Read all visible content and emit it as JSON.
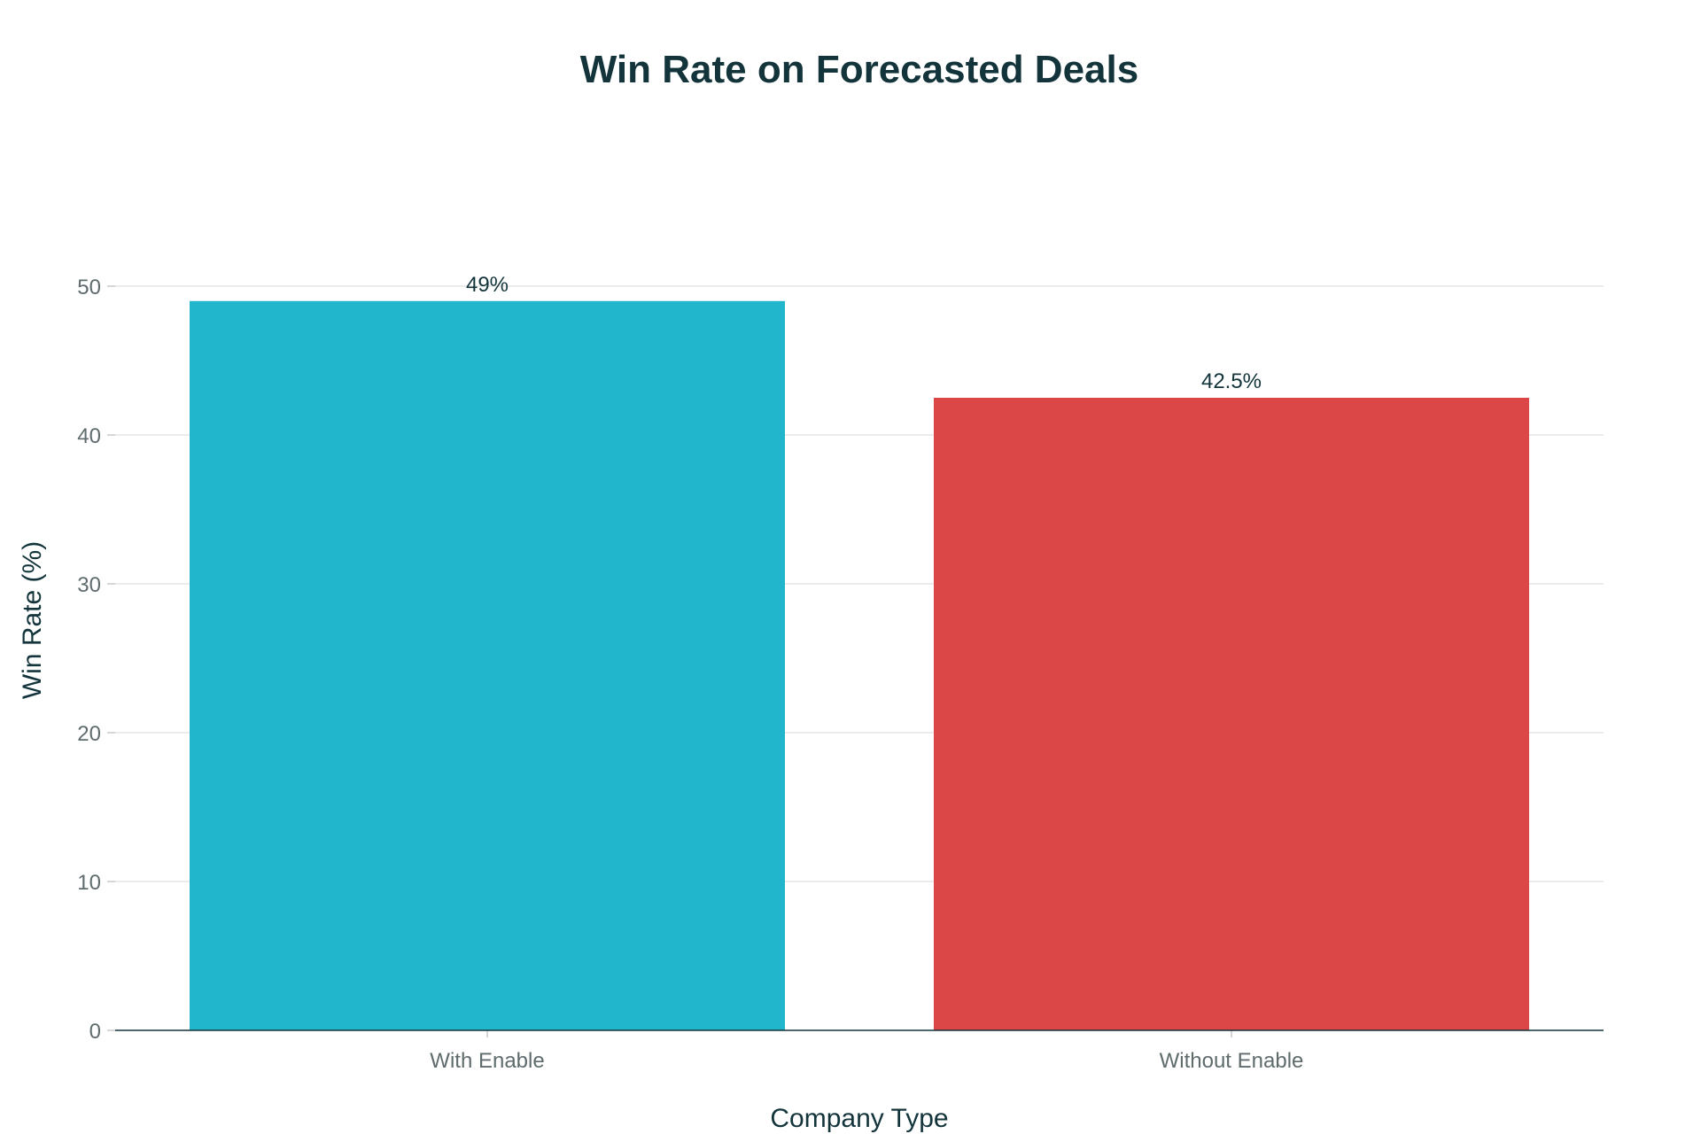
{
  "chart_data": {
    "type": "bar",
    "title": "Win Rate on Forecasted Deals",
    "xlabel": "Company Type",
    "ylabel": "Win Rate (%)",
    "categories": [
      "With Enable",
      "Without Enable"
    ],
    "values": [
      49,
      42.5
    ],
    "data_labels": [
      "49%",
      "42.5%"
    ],
    "bar_colors": [
      "#21b6cc",
      "#db4646"
    ],
    "ylim": [
      0,
      50
    ],
    "yticks": [
      0,
      10,
      20,
      30,
      40,
      50
    ],
    "grid": true,
    "legend": "none"
  }
}
